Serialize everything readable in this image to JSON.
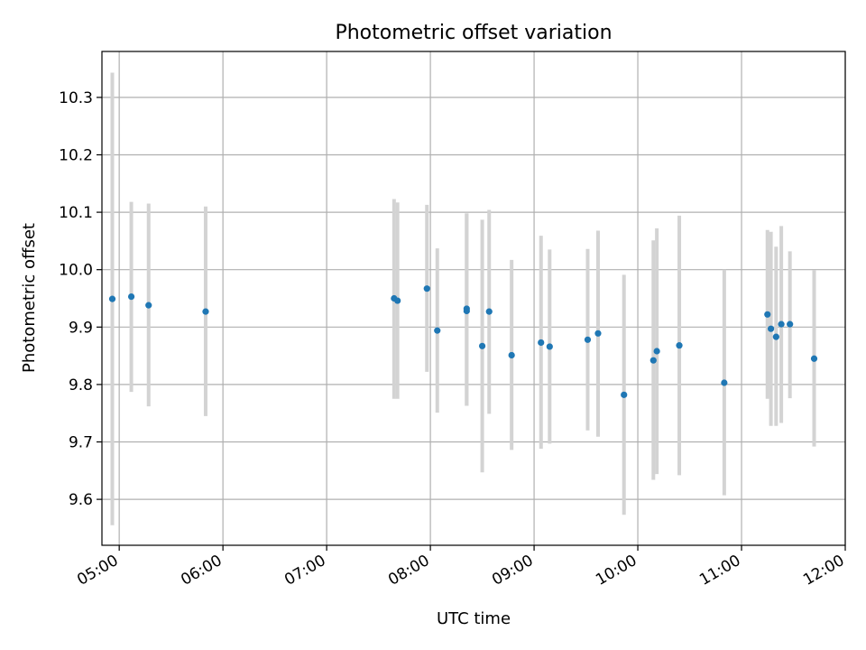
{
  "chart_data": {
    "type": "scatter",
    "title": "Photometric offset variation",
    "xlabel": "UTC time",
    "ylabel": "Photometric offset",
    "xlim": [
      "04:50",
      "12:00"
    ],
    "ylim": [
      9.52,
      10.38
    ],
    "grid": true,
    "x_ticks": [
      "05:00",
      "06:00",
      "07:00",
      "08:00",
      "09:00",
      "10:00",
      "11:00",
      "12:00"
    ],
    "y_ticks": [
      "9.6",
      "9.7",
      "9.8",
      "9.9",
      "10.0",
      "10.1",
      "10.2",
      "10.3"
    ],
    "colors": {
      "point": "#1f77b4",
      "error_bar": "#d3d3d3",
      "grid": "#b0b0b0"
    },
    "points": [
      {
        "time": "04:56",
        "y": 9.949,
        "err_low": 9.555,
        "err_high": 10.343
      },
      {
        "time": "05:07",
        "y": 9.953,
        "err_low": 9.787,
        "err_high": 10.118
      },
      {
        "time": "05:17",
        "y": 9.938,
        "err_low": 9.762,
        "err_high": 10.115
      },
      {
        "time": "05:50",
        "y": 9.927,
        "err_low": 9.745,
        "err_high": 10.11
      },
      {
        "time": "07:39",
        "y": 9.95,
        "err_low": 9.775,
        "err_high": 10.123
      },
      {
        "time": "07:41",
        "y": 9.946,
        "err_low": 9.775,
        "err_high": 10.117
      },
      {
        "time": "07:58",
        "y": 9.967,
        "err_low": 9.822,
        "err_high": 10.113
      },
      {
        "time": "08:04",
        "y": 9.894,
        "err_low": 9.751,
        "err_high": 10.037
      },
      {
        "time": "08:21",
        "y": 9.928,
        "err_low": 9.763,
        "err_high": 10.098
      },
      {
        "time": "08:21",
        "y": 9.932,
        "err_low": 9.763,
        "err_high": 10.098
      },
      {
        "time": "08:30",
        "y": 9.867,
        "err_low": 9.647,
        "err_high": 10.087
      },
      {
        "time": "08:34",
        "y": 9.927,
        "err_low": 9.749,
        "err_high": 10.104
      },
      {
        "time": "08:47",
        "y": 9.851,
        "err_low": 9.686,
        "err_high": 10.017
      },
      {
        "time": "09:04",
        "y": 9.873,
        "err_low": 9.688,
        "err_high": 10.059
      },
      {
        "time": "09:09",
        "y": 9.866,
        "err_low": 9.697,
        "err_high": 10.035
      },
      {
        "time": "09:31",
        "y": 9.878,
        "err_low": 9.72,
        "err_high": 10.036
      },
      {
        "time": "09:37",
        "y": 9.889,
        "err_low": 9.709,
        "err_high": 10.068
      },
      {
        "time": "09:52",
        "y": 9.782,
        "err_low": 9.573,
        "err_high": 9.991
      },
      {
        "time": "10:09",
        "y": 9.842,
        "err_low": 9.634,
        "err_high": 10.051
      },
      {
        "time": "10:11",
        "y": 9.858,
        "err_low": 9.644,
        "err_high": 10.072
      },
      {
        "time": "10:24",
        "y": 9.868,
        "err_low": 9.642,
        "err_high": 10.094
      },
      {
        "time": "10:50",
        "y": 9.803,
        "err_low": 9.607,
        "err_high": 10.0
      },
      {
        "time": "11:15",
        "y": 9.922,
        "err_low": 9.775,
        "err_high": 10.069
      },
      {
        "time": "11:17",
        "y": 9.897,
        "err_low": 9.728,
        "err_high": 10.066
      },
      {
        "time": "11:20",
        "y": 9.883,
        "err_low": 9.728,
        "err_high": 10.04
      },
      {
        "time": "11:23",
        "y": 9.905,
        "err_low": 9.733,
        "err_high": 10.076
      },
      {
        "time": "11:28",
        "y": 9.905,
        "err_low": 9.776,
        "err_high": 10.032
      },
      {
        "time": "11:42",
        "y": 9.845,
        "err_low": 9.692,
        "err_high": 9.999
      }
    ]
  }
}
